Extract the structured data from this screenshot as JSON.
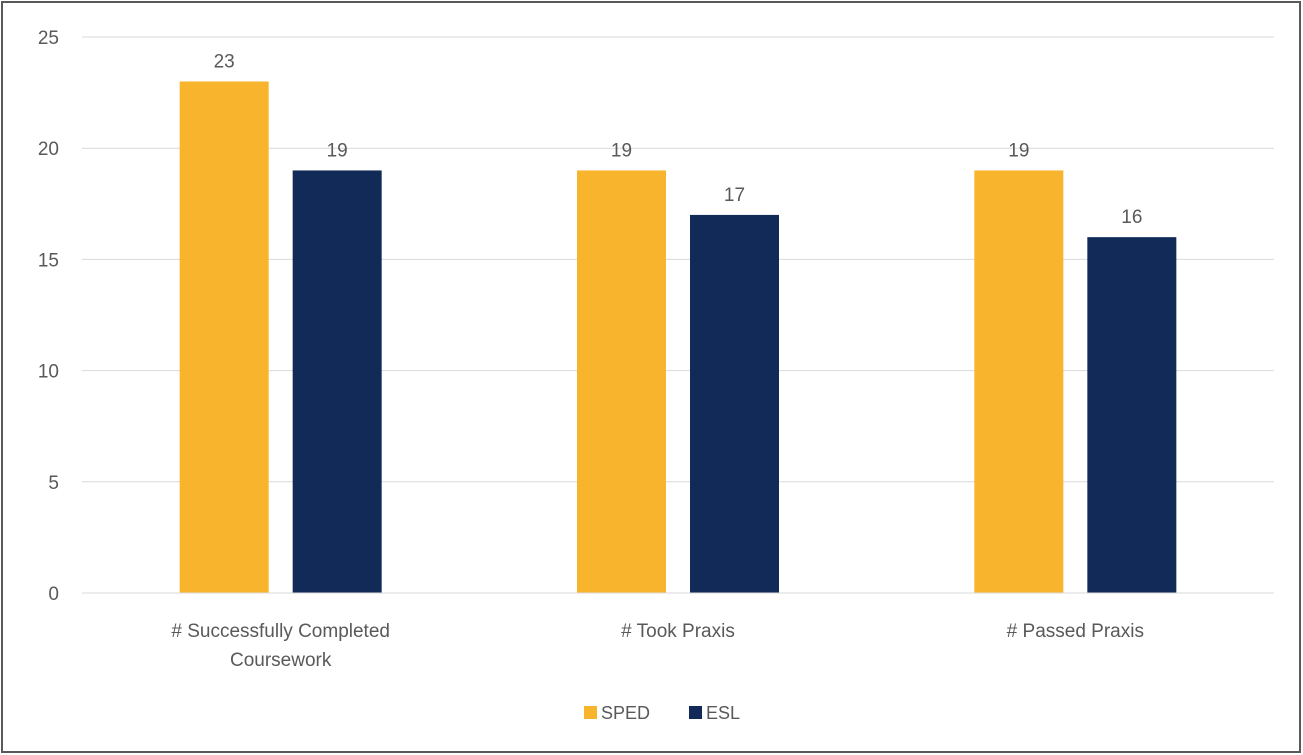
{
  "chart_data": {
    "type": "bar",
    "categories": [
      [
        "# Successfully Completed",
        "Coursework"
      ],
      [
        "# Took Praxis"
      ],
      [
        "# Passed Praxis"
      ]
    ],
    "series": [
      {
        "name": "SPED",
        "values": [
          23,
          19,
          19
        ],
        "color": "#F9B42D"
      },
      {
        "name": "ESL",
        "values": [
          19,
          17,
          16
        ],
        "color": "#112A57"
      }
    ],
    "ylim": [
      0,
      25
    ],
    "yticks": [
      0,
      5,
      10,
      15,
      20,
      25
    ],
    "grid": true,
    "legend_position": "bottom",
    "gridline_color": "#D9D9D9",
    "text_color": "#595959",
    "border_color": "#595959"
  }
}
